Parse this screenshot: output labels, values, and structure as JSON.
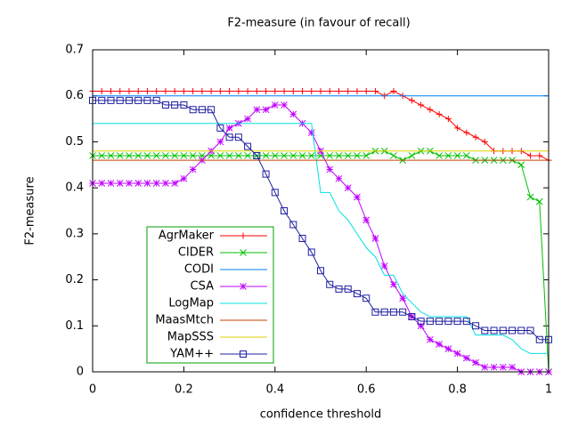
{
  "chart_data": {
    "type": "line",
    "title": "F2-measure (in favour of recall)",
    "x_label": "confidence threshold",
    "y_label": "F2-measure",
    "x": [
      0,
      0.02,
      0.04,
      0.06,
      0.08,
      0.1,
      0.12,
      0.14,
      0.16,
      0.18,
      0.2,
      0.22,
      0.24,
      0.26,
      0.28,
      0.3,
      0.32,
      0.34,
      0.36,
      0.38,
      0.4,
      0.42,
      0.44,
      0.46,
      0.48,
      0.5,
      0.52,
      0.54,
      0.56,
      0.58,
      0.6,
      0.62,
      0.64,
      0.66,
      0.68,
      0.7,
      0.72,
      0.74,
      0.76,
      0.78,
      0.8,
      0.82,
      0.84,
      0.86,
      0.88,
      0.9,
      0.92,
      0.94,
      0.96,
      0.98,
      1
    ],
    "xlim": [
      0,
      1
    ],
    "xticks": [
      0,
      0.2,
      0.4,
      0.6,
      0.8,
      1
    ],
    "ylim": [
      0,
      0.7
    ],
    "yticks": [
      0,
      0.1,
      0.2,
      0.3,
      0.4,
      0.5,
      0.6,
      0.7
    ],
    "grid": false,
    "legend": "lower-left",
    "series": [
      {
        "name": "AgrMaker",
        "color": "#ff0000",
        "marker": "plus",
        "values": [
          0.61,
          0.61,
          0.61,
          0.61,
          0.61,
          0.61,
          0.61,
          0.61,
          0.61,
          0.61,
          0.61,
          0.61,
          0.61,
          0.61,
          0.61,
          0.61,
          0.61,
          0.61,
          0.61,
          0.61,
          0.61,
          0.61,
          0.61,
          0.61,
          0.61,
          0.61,
          0.61,
          0.61,
          0.61,
          0.61,
          0.61,
          0.61,
          0.6,
          0.61,
          0.6,
          0.59,
          0.58,
          0.57,
          0.56,
          0.55,
          0.53,
          0.52,
          0.51,
          0.5,
          0.48,
          0.48,
          0.48,
          0.48,
          0.47,
          0.47,
          0.46
        ]
      },
      {
        "name": "CIDER",
        "color": "#00c000",
        "marker": "cross",
        "values": [
          0.47,
          0.47,
          0.47,
          0.47,
          0.47,
          0.47,
          0.47,
          0.47,
          0.47,
          0.47,
          0.47,
          0.47,
          0.47,
          0.47,
          0.47,
          0.47,
          0.47,
          0.47,
          0.47,
          0.47,
          0.47,
          0.47,
          0.47,
          0.47,
          0.47,
          0.47,
          0.47,
          0.47,
          0.47,
          0.47,
          0.47,
          0.48,
          0.48,
          0.47,
          0.46,
          0.47,
          0.48,
          0.48,
          0.47,
          0.47,
          0.47,
          0.47,
          0.46,
          0.46,
          0.46,
          0.46,
          0.46,
          0.45,
          0.38,
          0.37,
          0
        ]
      },
      {
        "name": "CODI",
        "color": "#0080ff",
        "marker": "none",
        "values": [
          0.6,
          0.6,
          0.6,
          0.6,
          0.6,
          0.6,
          0.6,
          0.6,
          0.6,
          0.6,
          0.6,
          0.6,
          0.6,
          0.6,
          0.6,
          0.6,
          0.6,
          0.6,
          0.6,
          0.6,
          0.6,
          0.6,
          0.6,
          0.6,
          0.6,
          0.6,
          0.6,
          0.6,
          0.6,
          0.6,
          0.6,
          0.6,
          0.6,
          0.6,
          0.6,
          0.6,
          0.6,
          0.6,
          0.6,
          0.6,
          0.6,
          0.6,
          0.6,
          0.6,
          0.6,
          0.6,
          0.6,
          0.6,
          0.6,
          0.6,
          0.6
        ]
      },
      {
        "name": "CSA",
        "color": "#c000ff",
        "marker": "star",
        "values": [
          0.41,
          0.41,
          0.41,
          0.41,
          0.41,
          0.41,
          0.41,
          0.41,
          0.41,
          0.41,
          0.42,
          0.44,
          0.46,
          0.48,
          0.5,
          0.53,
          0.54,
          0.55,
          0.57,
          0.57,
          0.58,
          0.58,
          0.56,
          0.54,
          0.52,
          0.48,
          0.44,
          0.42,
          0.4,
          0.38,
          0.33,
          0.29,
          0.23,
          0.19,
          0.16,
          0.12,
          0.1,
          0.07,
          0.06,
          0.05,
          0.04,
          0.03,
          0.02,
          0.01,
          0.01,
          0.01,
          0.01,
          0,
          0,
          0,
          0
        ]
      },
      {
        "name": "LogMap",
        "color": "#00e0e0",
        "marker": "none",
        "values": [
          0.54,
          0.54,
          0.54,
          0.54,
          0.54,
          0.54,
          0.54,
          0.54,
          0.54,
          0.54,
          0.54,
          0.54,
          0.54,
          0.54,
          0.54,
          0.54,
          0.54,
          0.54,
          0.54,
          0.54,
          0.54,
          0.54,
          0.54,
          0.54,
          0.54,
          0.39,
          0.39,
          0.35,
          0.33,
          0.3,
          0.27,
          0.25,
          0.21,
          0.21,
          0.17,
          0.15,
          0.13,
          0.12,
          0.12,
          0.12,
          0.12,
          0.12,
          0.08,
          0.08,
          0.08,
          0.08,
          0.07,
          0.05,
          0.04,
          0.04,
          0.04
        ]
      },
      {
        "name": "MaasMtch",
        "color": "#c04000",
        "marker": "none",
        "values": [
          0.46,
          0.46,
          0.46,
          0.46,
          0.46,
          0.46,
          0.46,
          0.46,
          0.46,
          0.46,
          0.46,
          0.46,
          0.46,
          0.46,
          0.46,
          0.46,
          0.46,
          0.46,
          0.46,
          0.46,
          0.46,
          0.46,
          0.46,
          0.46,
          0.46,
          0.46,
          0.46,
          0.46,
          0.46,
          0.46,
          0.46,
          0.46,
          0.46,
          0.46,
          0.46,
          0.46,
          0.46,
          0.46,
          0.46,
          0.46,
          0.46,
          0.46,
          0.46,
          0.46,
          0.46,
          0.46,
          0.46,
          0.46,
          0.46,
          0.46,
          0.46
        ]
      },
      {
        "name": "MapSSS",
        "color": "#e0d000",
        "marker": "none",
        "values": [
          0.48,
          0.48,
          0.48,
          0.48,
          0.48,
          0.48,
          0.48,
          0.48,
          0.48,
          0.48,
          0.48,
          0.48,
          0.48,
          0.48,
          0.48,
          0.48,
          0.48,
          0.48,
          0.48,
          0.48,
          0.48,
          0.48,
          0.48,
          0.48,
          0.48,
          0.48,
          0.48,
          0.48,
          0.48,
          0.48,
          0.48,
          0.48,
          0.48,
          0.48,
          0.48,
          0.48,
          0.48,
          0.48,
          0.48,
          0.48,
          0.48,
          0.48,
          0.48,
          0.48,
          0.48,
          0.48,
          0.48,
          0.48,
          0.48,
          0.48,
          0.48
        ]
      },
      {
        "name": "YAM++",
        "color": "#2020a0",
        "marker": "square",
        "values": [
          0.59,
          0.59,
          0.59,
          0.59,
          0.59,
          0.59,
          0.59,
          0.59,
          0.58,
          0.58,
          0.58,
          0.57,
          0.57,
          0.57,
          0.53,
          0.51,
          0.51,
          0.49,
          0.47,
          0.43,
          0.39,
          0.35,
          0.32,
          0.29,
          0.26,
          0.22,
          0.19,
          0.18,
          0.18,
          0.17,
          0.16,
          0.13,
          0.13,
          0.13,
          0.13,
          0.12,
          0.11,
          0.11,
          0.11,
          0.11,
          0.11,
          0.11,
          0.1,
          0.09,
          0.09,
          0.09,
          0.09,
          0.09,
          0.09,
          0.07,
          0.07
        ]
      }
    ]
  }
}
